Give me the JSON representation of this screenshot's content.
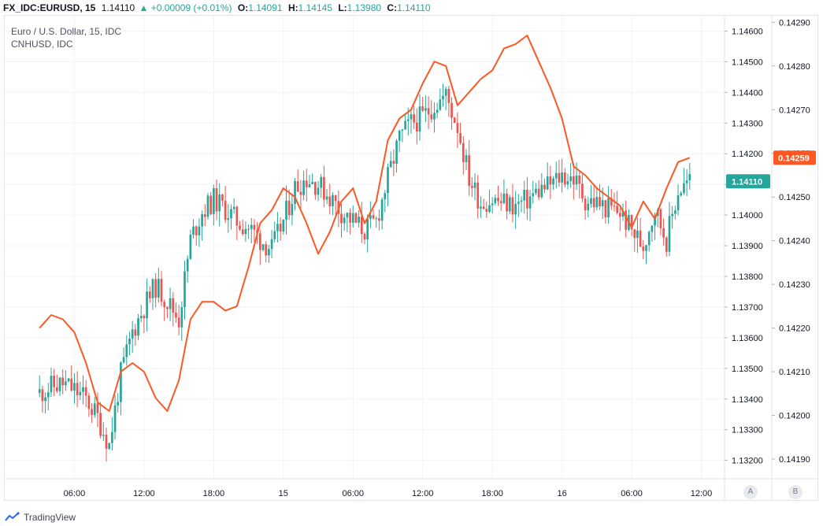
{
  "header": {
    "symbol": "FX_IDC:EURUSD, 15",
    "last": "1.14110",
    "change": "▲ +0.00009 (+0.01%)",
    "o_label": "O:",
    "o_value": "1.14091",
    "h_label": "H:",
    "h_value": "1.14145",
    "l_label": "L:",
    "l_value": "1.13980",
    "c_label": "C:",
    "c_value": "1.14110"
  },
  "legend": {
    "main": "Euro / U.S. Dollar, 15, IDC",
    "compare": "CNHUSD, IDC"
  },
  "colors": {
    "up": "#26a69a",
    "down": "#ef5350",
    "compare": "#ff5722",
    "grid": "#f0f3fa",
    "axis_text": "#131722"
  },
  "scale_buttons": {
    "a": "A",
    "b": "B"
  },
  "footer": {
    "brand": "TradingView",
    "logo_icon": "tradingview-logo-icon"
  },
  "chart_data": {
    "type": "line",
    "x_ticks": [
      "06:00",
      "12:00",
      "18:00",
      "15",
      "06:00",
      "12:00",
      "18:00",
      "16",
      "06:00",
      "12:00"
    ],
    "left_price_axis": {
      "series": "Euro / U.S. Dollar, 15, IDC",
      "ticks": [
        "1.14600",
        "1.14500",
        "1.14400",
        "1.14300",
        "1.14200",
        "1.14100",
        "1.14000",
        "1.13900",
        "1.13800",
        "1.13700",
        "1.13600",
        "1.13500",
        "1.13400",
        "1.13300",
        "1.13200"
      ],
      "range": [
        1.1314,
        1.1465
      ],
      "last_price_label": "1.14110"
    },
    "right_price_axis": {
      "series": "CNHUSD, IDC",
      "ticks": [
        "0.14290",
        "0.14280",
        "0.14270",
        "0.14260",
        "0.14250",
        "0.14240",
        "0.14230",
        "0.14220",
        "0.14210",
        "0.14200",
        "0.14190"
      ],
      "range": [
        0.141855,
        0.142915
      ],
      "last_price_label": "0.14259"
    },
    "series": [
      {
        "name": "Euro / U.S. Dollar, 15, IDC",
        "style": "candlestick",
        "x_unit": "hours since 00:00 of first day",
        "x": [
          3,
          4,
          5,
          6,
          7,
          8,
          9,
          10,
          11,
          12,
          13,
          14,
          15,
          16,
          17,
          18,
          19,
          20,
          21,
          22,
          23,
          24,
          25,
          26,
          27,
          28,
          29,
          30,
          31,
          32,
          33,
          34,
          35,
          36,
          37,
          38,
          39,
          40,
          41,
          42,
          43,
          44,
          45,
          46,
          47,
          48,
          49,
          50,
          51,
          52,
          53,
          54,
          55,
          56,
          57,
          58,
          59
        ],
        "close": [
          1.1342,
          1.1344,
          1.1345,
          1.1343,
          1.134,
          1.1334,
          1.1325,
          1.1348,
          1.1362,
          1.137,
          1.1377,
          1.1372,
          1.1366,
          1.1392,
          1.1401,
          1.1405,
          1.1402,
          1.1398,
          1.1396,
          1.1392,
          1.1389,
          1.1398,
          1.1409,
          1.1412,
          1.141,
          1.1406,
          1.1401,
          1.1398,
          1.1395,
          1.1398,
          1.1412,
          1.1425,
          1.143,
          1.1432,
          1.1436,
          1.1439,
          1.1429,
          1.1412,
          1.1404,
          1.1405,
          1.1404,
          1.1403,
          1.1405,
          1.1408,
          1.141,
          1.1413,
          1.1412,
          1.1405,
          1.1404,
          1.1402,
          1.1401,
          1.1395,
          1.139,
          1.1402,
          1.1392,
          1.1408,
          1.1411
        ]
      },
      {
        "name": "CNHUSD, IDC",
        "style": "line",
        "x_unit": "hours since 00:00 of first day",
        "x": [
          3,
          4,
          5,
          6,
          7,
          8,
          9,
          10,
          11,
          12,
          13,
          14,
          15,
          16,
          17,
          18,
          19,
          20,
          21,
          22,
          23,
          24,
          25,
          26,
          27,
          28,
          29,
          30,
          31,
          32,
          33,
          34,
          35,
          36,
          37,
          38,
          39,
          40,
          41,
          42,
          43,
          44,
          45,
          46,
          47,
          48,
          49,
          50,
          51,
          52,
          53,
          54,
          55,
          56,
          57,
          58,
          59
        ],
        "values": [
          0.1422,
          0.14223,
          0.14222,
          0.14219,
          0.14212,
          0.14203,
          0.14201,
          0.1421,
          0.14212,
          0.1421,
          0.14204,
          0.14201,
          0.14208,
          0.14222,
          0.14226,
          0.14226,
          0.14224,
          0.14225,
          0.14234,
          0.14244,
          0.14247,
          0.14252,
          0.1425,
          0.14244,
          0.14237,
          0.14242,
          0.14249,
          0.14252,
          0.14244,
          0.14249,
          0.14263,
          0.14268,
          0.1427,
          0.14276,
          0.14281,
          0.1428,
          0.14271,
          0.14274,
          0.14277,
          0.14279,
          0.14284,
          0.14285,
          0.14287,
          0.14281,
          0.14275,
          0.14268,
          0.14257,
          0.14255,
          0.14252,
          0.1425,
          0.14248,
          0.14243,
          0.14249,
          0.14245,
          0.14252,
          0.14258,
          0.14259
        ]
      }
    ]
  }
}
